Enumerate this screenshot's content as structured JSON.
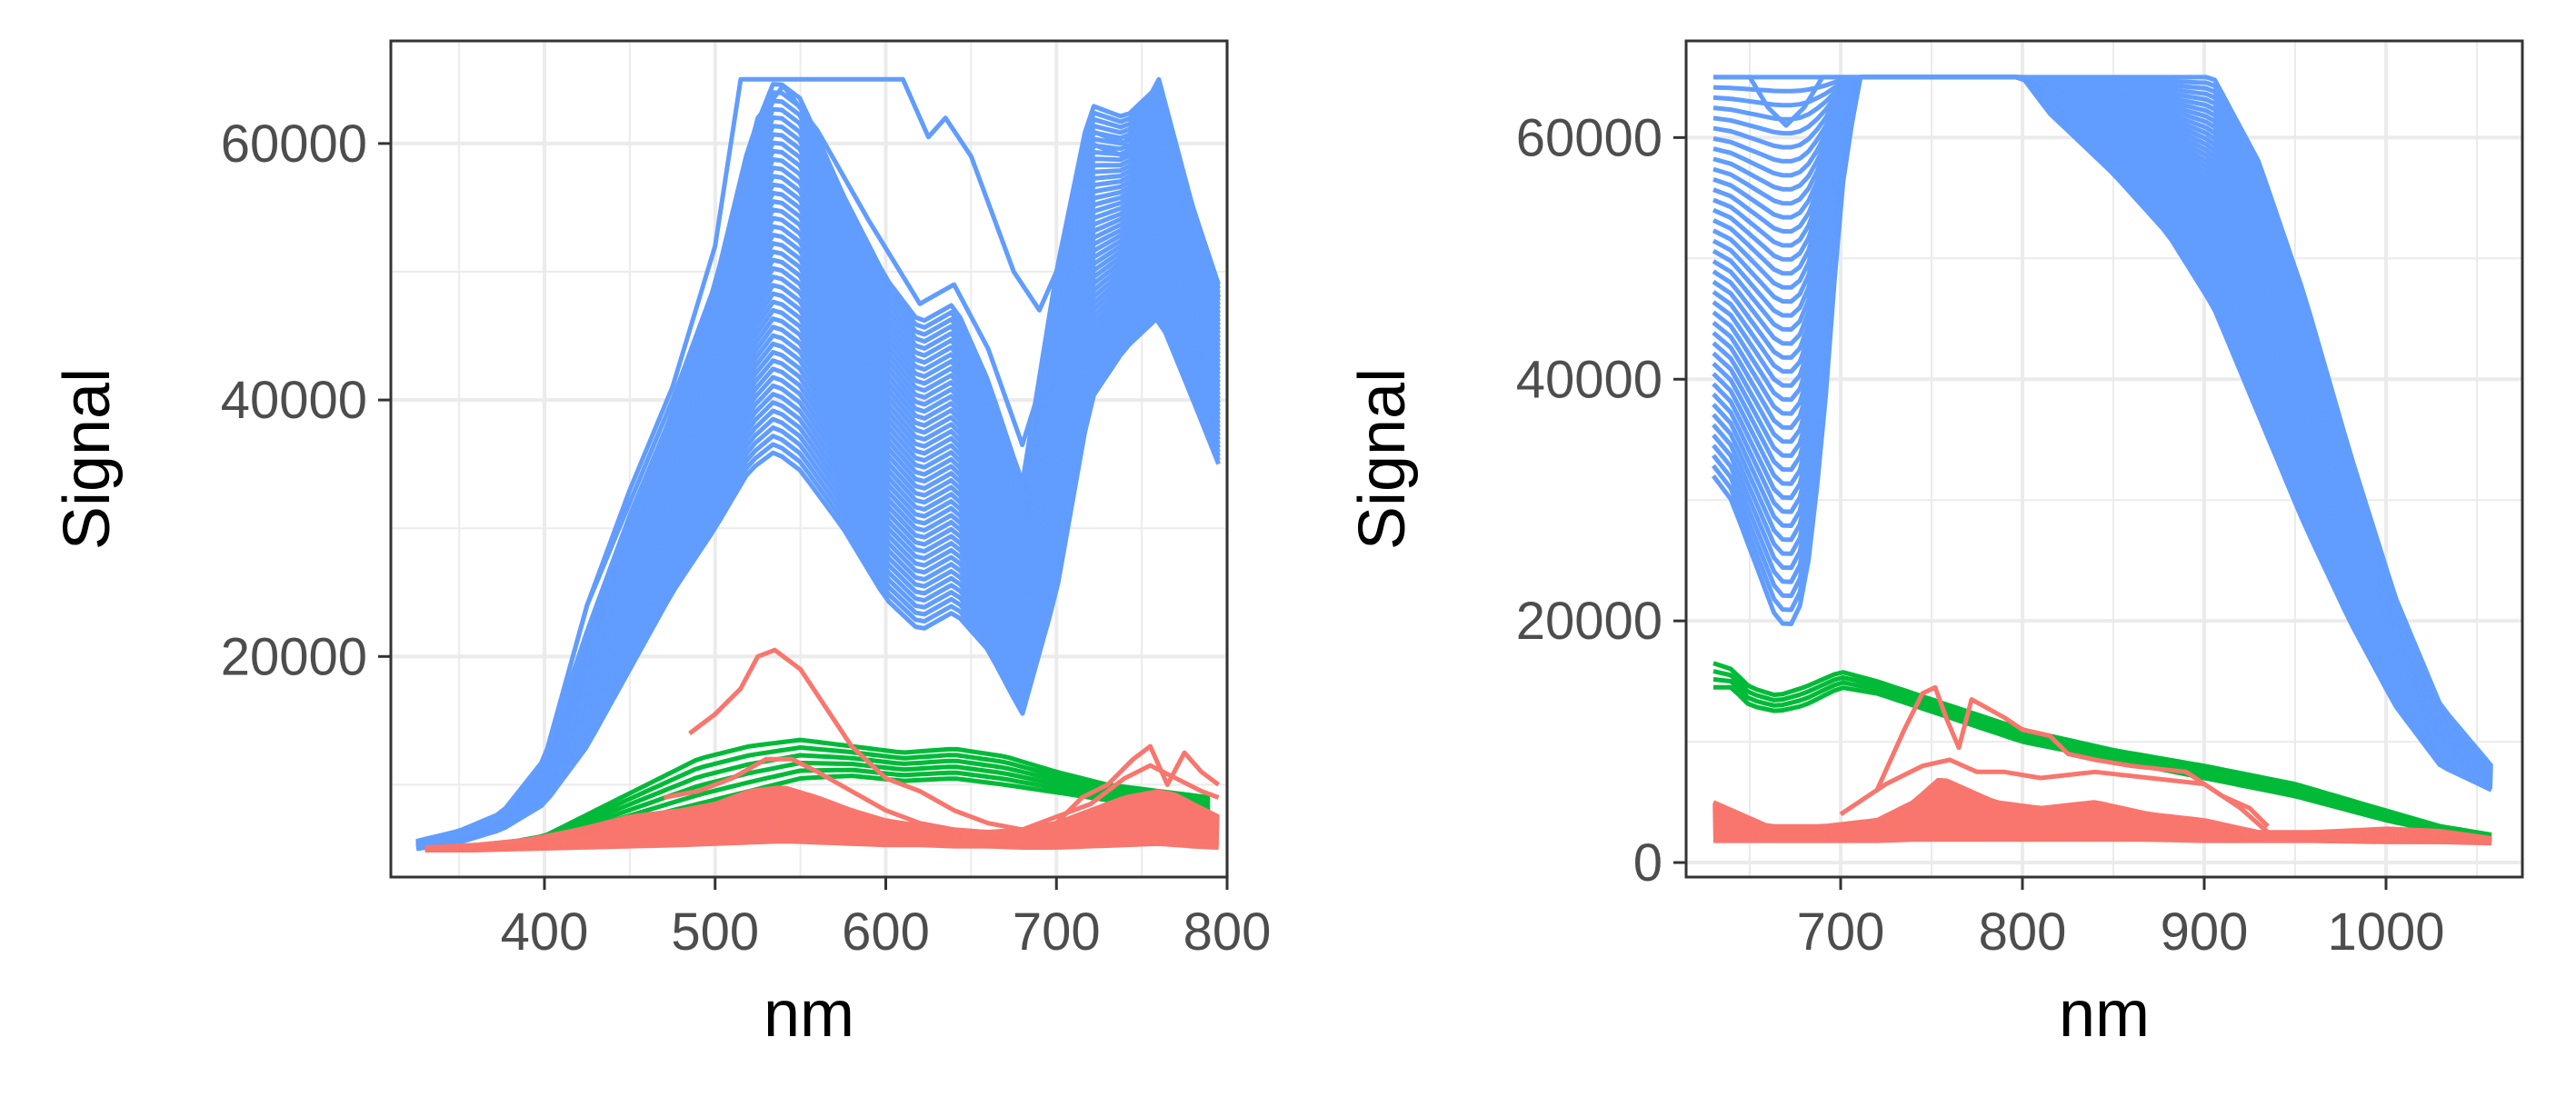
{
  "colors": {
    "blue": "#619CFF",
    "green": "#00BA38",
    "red": "#F8766D",
    "grid": "#EBEBEB",
    "panel_border": "#333333",
    "tick_text": "#4D4D4D",
    "axis_title": "#000000"
  },
  "chart_data": [
    {
      "type": "line",
      "xlabel": "nm",
      "ylabel": "Signal",
      "xlim": [
        310,
        800
      ],
      "ylim": [
        2800,
        68000
      ],
      "xticks": [
        400,
        500,
        600,
        700,
        800
      ],
      "yticks": [
        20000,
        40000,
        60000
      ],
      "tick_labels_x": [
        "400",
        "500",
        "600",
        "700",
        "800"
      ],
      "tick_labels_y": [
        "20000",
        "40000",
        "60000"
      ],
      "grid": true,
      "series_groups": [
        {
          "color": "blue",
          "lines": 45,
          "x": [
            325,
            350,
            375,
            400,
            425,
            450,
            475,
            500,
            520,
            535,
            550,
            575,
            600,
            620,
            640,
            660,
            680,
            700,
            720,
            740,
            760,
            780,
            795
          ],
          "lower": [
            5000,
            5500,
            6500,
            8500,
            13000,
            19000,
            25000,
            30000,
            34500,
            36000,
            34500,
            30000,
            24500,
            22000,
            23500,
            20500,
            15500,
            25000,
            40000,
            44000,
            46500,
            40000,
            35000
          ],
          "upper": [
            5600,
            6400,
            7800,
            12000,
            22000,
            31000,
            39000,
            49000,
            60000,
            65000,
            63500,
            56000,
            49500,
            46000,
            47500,
            41500,
            33500,
            50000,
            63000,
            62000,
            64500,
            55000,
            49000
          ],
          "outliers": [
            {
              "x": [
                325,
                350,
                375,
                400,
                425,
                450,
                475,
                500,
                515,
                520,
                560,
                600,
                610,
                625,
                635,
                650,
                675,
                690,
                700,
                720,
                740,
                760,
                780,
                795
              ],
              "y": [
                5200,
                6000,
                7500,
                12000,
                24000,
                33000,
                41000,
                52000,
                65000,
                65000,
                65000,
                65000,
                65000,
                60500,
                62000,
                59000,
                50000,
                47000,
                50000,
                60000,
                59000,
                64500,
                54000,
                48000
              ]
            },
            {
              "x": [
                325,
                350,
                375,
                400,
                425,
                450,
                475,
                500,
                525,
                540,
                560,
                590,
                620,
                640,
                660,
                680,
                700,
                720,
                740,
                760,
                780,
                795
              ],
              "y": [
                5200,
                6000,
                7500,
                12000,
                24000,
                32000,
                40000,
                49000,
                62000,
                64500,
                61000,
                54000,
                47500,
                49000,
                44000,
                36500,
                45000,
                61000,
                60000,
                65000,
                55000,
                48000
              ]
            }
          ]
        },
        {
          "color": "green",
          "lines": 6,
          "x": [
            330,
            370,
            400,
            430,
            460,
            490,
            520,
            550,
            580,
            610,
            640,
            670,
            700,
            730,
            760,
            790
          ],
          "lower": [
            5000,
            5200,
            5500,
            6500,
            7500,
            8500,
            9500,
            10500,
            10700,
            10300,
            10500,
            10000,
            9400,
            8800,
            8300,
            7800
          ],
          "upper": [
            5000,
            5300,
            6000,
            8000,
            10000,
            12000,
            13000,
            13500,
            13000,
            12500,
            12800,
            12200,
            11000,
            10000,
            9500,
            9000
          ]
        },
        {
          "color": "red",
          "lines": 40,
          "x": [
            330,
            360,
            390,
            420,
            450,
            480,
            500,
            520,
            540,
            560,
            580,
            600,
            620,
            640,
            660,
            680,
            700,
            720,
            740,
            760,
            770,
            780,
            795
          ],
          "lower": [
            4900,
            4900,
            5000,
            5100,
            5200,
            5300,
            5400,
            5500,
            5600,
            5500,
            5400,
            5300,
            5300,
            5200,
            5200,
            5100,
            5100,
            5200,
            5300,
            5400,
            5300,
            5200,
            5100
          ],
          "upper": [
            5100,
            5300,
            5700,
            6500,
            7500,
            8000,
            8500,
            9500,
            9800,
            9000,
            8000,
            7200,
            6800,
            6500,
            6300,
            6500,
            7000,
            8000,
            9000,
            9500,
            9200,
            8500,
            7500
          ],
          "outliers": [
            {
              "x": [
                485,
                500,
                515,
                525,
                535,
                550,
                565,
                580,
                600,
                620,
                640,
                660,
                680,
                700,
                715,
                730,
                745,
                755,
                765,
                775,
                785,
                795
              ],
              "y": [
                14000,
                15500,
                17500,
                20000,
                20500,
                19000,
                16000,
                13000,
                10500,
                9500,
                8000,
                7000,
                6500,
                7000,
                9000,
                10000,
                12000,
                13000,
                10000,
                12500,
                11000,
                10000
              ]
            },
            {
              "x": [
                470,
                490,
                510,
                530,
                545,
                560,
                580,
                600,
                620,
                640,
                660,
                680,
                700,
                720,
                740,
                755,
                770,
                785,
                795
              ],
              "y": [
                9000,
                9500,
                10500,
                12000,
                12000,
                11000,
                9500,
                8000,
                7000,
                6500,
                6000,
                6500,
                7500,
                8500,
                10500,
                11500,
                10500,
                9500,
                9000
              ]
            }
          ]
        }
      ]
    },
    {
      "type": "line",
      "xlabel": "nm",
      "ylabel": "Signal",
      "xlim": [
        615,
        1075
      ],
      "ylim": [
        -1200,
        68000
      ],
      "xticks": [
        700,
        800,
        900,
        1000
      ],
      "yticks": [
        0,
        20000,
        40000,
        60000
      ],
      "tick_labels_x": [
        "700",
        "800",
        "900",
        "1000"
      ],
      "tick_labels_y": [
        "0",
        "20000",
        "40000",
        "60000"
      ],
      "grid": true,
      "series_groups": [
        {
          "color": "blue",
          "lines": 40,
          "x": [
            630,
            640,
            655,
            665,
            672,
            680,
            690,
            700,
            710,
            720,
            800,
            815,
            850,
            880,
            905,
            930,
            955,
            980,
            1005,
            1030,
            1058
          ],
          "lower": [
            32000,
            30000,
            24000,
            20000,
            19500,
            22000,
            35000,
            55000,
            65000,
            65000,
            65000,
            62000,
            57000,
            52000,
            46000,
            37000,
            28000,
            20000,
            13000,
            8000,
            6000
          ],
          "upper": [
            65000,
            65000,
            65000,
            65000,
            65000,
            65000,
            65000,
            65000,
            65000,
            65000,
            65000,
            65000,
            65000,
            65000,
            65000,
            58000,
            47000,
            34000,
            22000,
            13000,
            8000
          ],
          "outliers": [
            {
              "x": [
                630,
                650,
                660,
                670,
                680,
                690,
                700,
                720
              ],
              "y": [
                65000,
                65000,
                62500,
                61000,
                62500,
                65000,
                65000,
                65000
              ]
            }
          ]
        },
        {
          "color": "green",
          "lines": 4,
          "x": [
            630,
            640,
            650,
            665,
            680,
            700,
            720,
            750,
            800,
            850,
            900,
            950,
            1000,
            1030,
            1058
          ],
          "lower": [
            14500,
            14500,
            13000,
            12500,
            13000,
            14500,
            14000,
            12500,
            10000,
            8500,
            7000,
            5500,
            3500,
            2500,
            1800
          ],
          "upper": [
            16500,
            16000,
            14500,
            13800,
            14500,
            15800,
            15000,
            13500,
            11000,
            9300,
            8000,
            6500,
            4300,
            3000,
            2300
          ]
        },
        {
          "color": "red",
          "lines": 35,
          "x": [
            630,
            645,
            660,
            690,
            720,
            740,
            755,
            770,
            785,
            810,
            840,
            870,
            900,
            930,
            960,
            1000,
            1030,
            1058
          ],
          "lower": [
            1800,
            1800,
            1800,
            1800,
            1800,
            1900,
            1900,
            1900,
            1900,
            1900,
            1900,
            1900,
            1800,
            1800,
            1800,
            1700,
            1700,
            1600
          ],
          "upper": [
            5000,
            4000,
            3000,
            3000,
            3500,
            5000,
            7000,
            6000,
            5000,
            4500,
            5000,
            4000,
            3500,
            2500,
            2500,
            2800,
            2600,
            2000
          ],
          "outliers": [
            {
              "x": [
                720,
                735,
                745,
                752,
                758,
                765,
                772,
                778,
                790,
                800,
                815,
                825,
                840,
                860,
                890,
                910,
                925,
                935
              ],
              "y": [
                6000,
                11000,
                14000,
                14500,
                12000,
                9500,
                13500,
                13000,
                12000,
                11000,
                10500,
                9000,
                8500,
                8000,
                7500,
                5500,
                4500,
                3000
              ]
            },
            {
              "x": [
                700,
                725,
                745,
                760,
                775,
                790,
                810,
                840,
                870,
                900,
                920,
                935
              ],
              "y": [
                4000,
                6500,
                8000,
                8500,
                7500,
                7500,
                7000,
                7500,
                7000,
                6500,
                4500,
                2500
              ]
            }
          ]
        }
      ]
    }
  ]
}
